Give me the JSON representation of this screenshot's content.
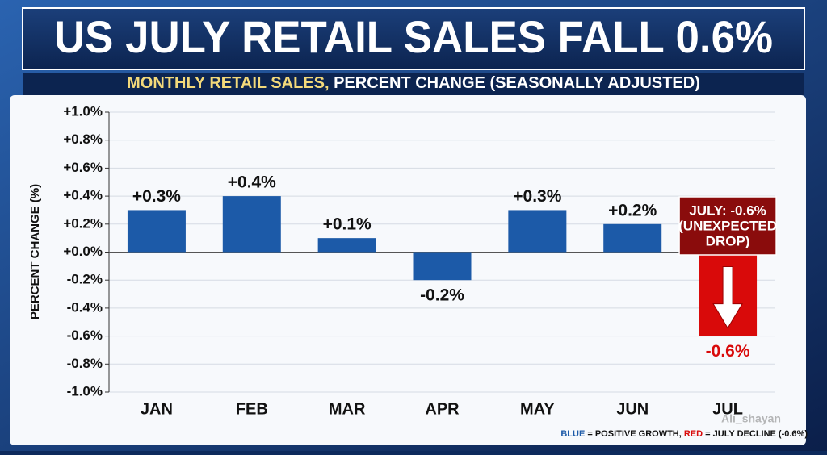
{
  "chart_data": {
    "type": "bar",
    "title": "US JULY RETAIL SALES FALL 0.6%",
    "subtitle": [
      "MONTHLY RETAIL SALES,",
      "PERCENT CHANGE (SEASONALLY ADJUSTED)"
    ],
    "y_axis_label": "PERCENT CHANGE (%)",
    "categories": [
      "JAN",
      "FEB",
      "MAR",
      "APR",
      "MAY",
      "JUN",
      "JUL"
    ],
    "values": [
      0.3,
      0.4,
      0.1,
      -0.2,
      0.3,
      0.2,
      -0.6
    ],
    "value_labels": [
      "+0.3%",
      "+0.4%",
      "+0.1%",
      "-0.2%",
      "+0.3%",
      "+0.2%",
      "-0.6%"
    ],
    "colors": [
      "#1c5aa8",
      "#1c5aa8",
      "#1c5aa8",
      "#1c5aa8",
      "#1c5aa8",
      "#1c5aa8",
      "#d90a0a"
    ],
    "ylim": [
      -1.0,
      1.0
    ],
    "yticks": [
      {
        "value": 1.0,
        "label": "+1.0%"
      },
      {
        "value": 0.8,
        "label": "+0.8%"
      },
      {
        "value": 0.6,
        "label": "+0.6%"
      },
      {
        "value": 0.4,
        "label": "+0.4%"
      },
      {
        "value": 0.2,
        "label": "+0.2%"
      },
      {
        "value": 0.0,
        "label": "+0.0%"
      },
      {
        "value": -0.2,
        "label": "-0.2%"
      },
      {
        "value": -0.4,
        "label": "-0.4%"
      },
      {
        "value": -0.6,
        "label": "-0.6%"
      },
      {
        "value": -0.8,
        "label": "-0.8%"
      },
      {
        "value": -1.0,
        "label": "-1.0%"
      }
    ],
    "grid": true,
    "annotation": [
      "JULY: -0.6%",
      "(UNEXPECTED",
      "DROP)"
    ],
    "footer": [
      "BLUE",
      " = POSITIVE GROWTH, ",
      "RED",
      " = JULY DECLINE (-0.6%)"
    ],
    "watermark": "Ali_shayan"
  }
}
